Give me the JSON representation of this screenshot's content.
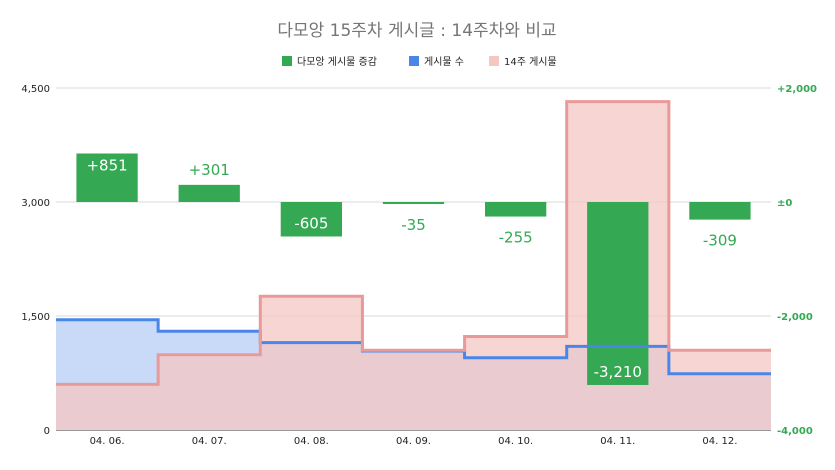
{
  "chart_data": {
    "type": "bar",
    "title": "다모앙 15주차 게시글 : 14주차와 비교",
    "categories": [
      "04. 06.",
      "04. 07.",
      "04. 08.",
      "04. 09.",
      "04. 10.",
      "04. 11.",
      "04. 12."
    ],
    "series": [
      {
        "name": "다모앙 게시물 증감",
        "kind": "bar",
        "axis": "right",
        "color": "#34a853",
        "values": [
          851,
          301,
          -605,
          -35,
          -255,
          -3210,
          -309
        ],
        "labels": [
          "+851",
          "+301",
          "-605",
          "-35",
          "-255",
          "-3,210",
          "-309"
        ]
      },
      {
        "name": "게시물 수",
        "kind": "stepped-area",
        "axis": "left",
        "color": "#4a86e8",
        "fill": "#c9daf8",
        "values": [
          1450,
          1300,
          1150,
          1040,
          950,
          1100,
          740
        ]
      },
      {
        "name": "14주 게시물",
        "kind": "stepped-area",
        "axis": "left",
        "color": "#ea9999",
        "fill": "#f4c7c3",
        "values": [
          600,
          990,
          1760,
          1050,
          1230,
          4320,
          1050
        ]
      }
    ],
    "left_axis": {
      "ylim": [
        0,
        4500
      ],
      "ticks": [
        0,
        1500,
        3000,
        4500
      ],
      "tick_labels": [
        "0",
        "1,500",
        "3,000",
        "4,500"
      ]
    },
    "right_axis": {
      "ylim": [
        -4000,
        2000
      ],
      "ticks": [
        -4000,
        -2000,
        0,
        2000
      ],
      "tick_labels": [
        "-4,000",
        "-2,000",
        "±0",
        "+2,000"
      ],
      "color": "#34a853"
    },
    "grid": true,
    "legend": "top"
  }
}
